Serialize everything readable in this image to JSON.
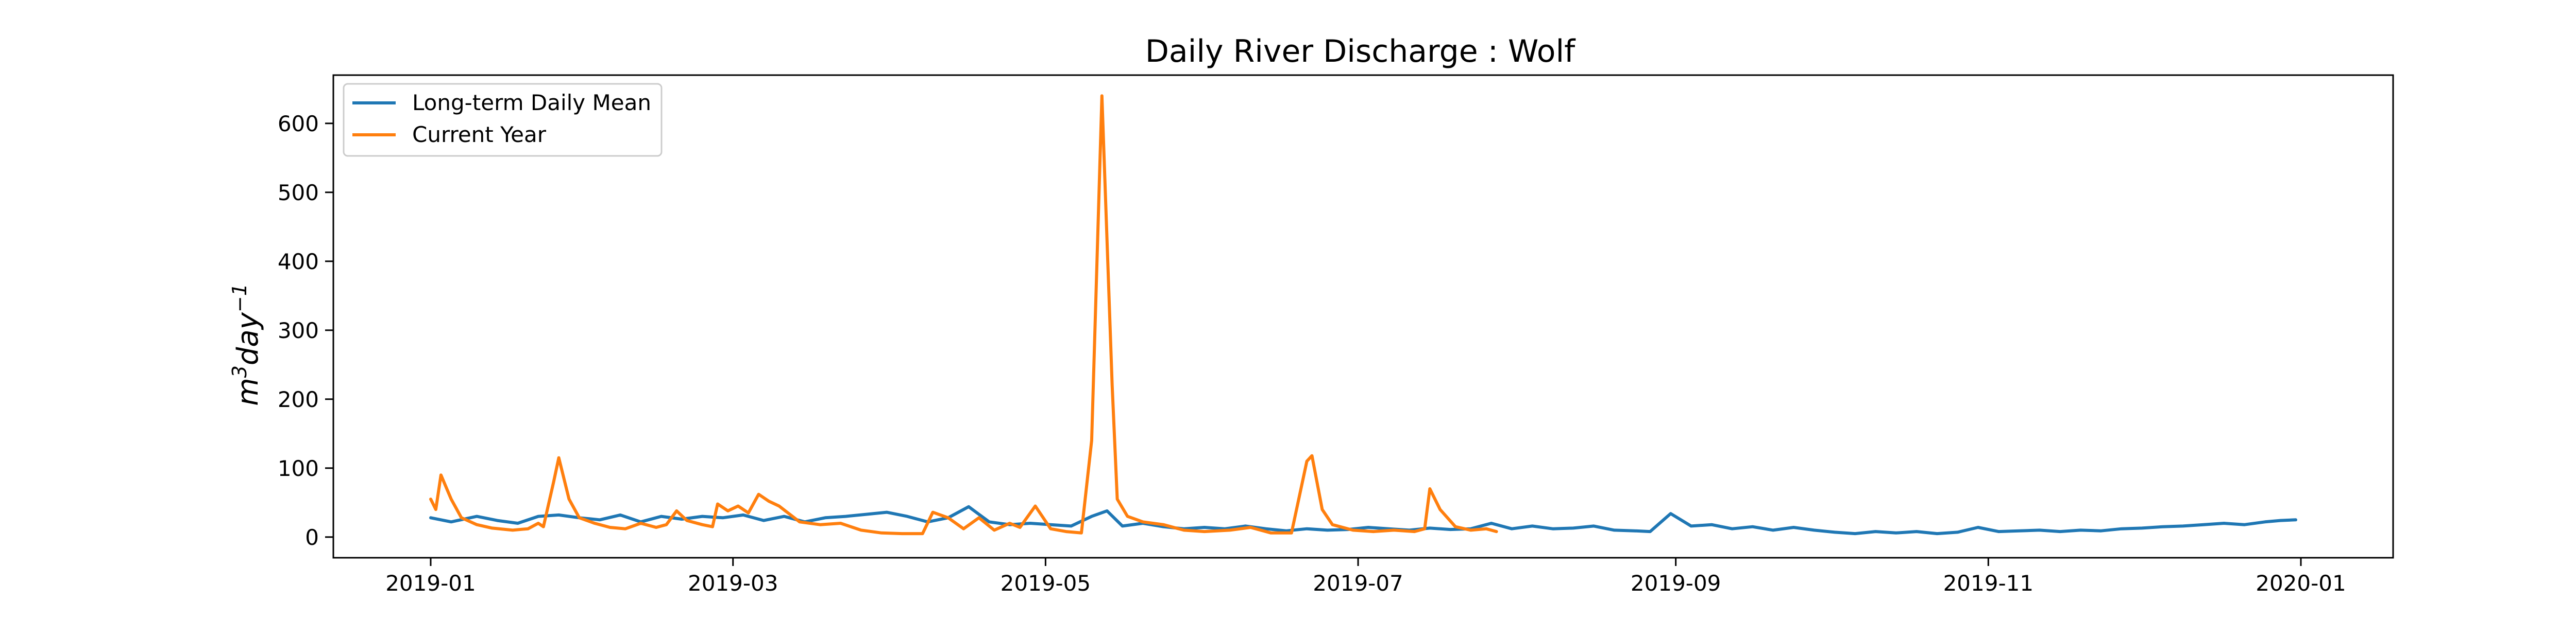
{
  "chart_data": {
    "type": "line",
    "title": "Daily River Discharge : Wolf",
    "xlabel": "",
    "ylabel": "m³day⁻¹",
    "ylabel_parts": {
      "base": "m",
      "sup1": "3",
      "mid": "day",
      "sup2": "−1"
    },
    "ylim": [
      -30,
      670
    ],
    "xlim": [
      "2018-12-13",
      "2020-01-19"
    ],
    "yticks": [
      0,
      100,
      200,
      300,
      400,
      500,
      600
    ],
    "xticks": [
      "2019-01",
      "2019-03",
      "2019-05",
      "2019-07",
      "2019-09",
      "2019-11",
      "2020-01"
    ],
    "xtick_dates": [
      "2019-01-01",
      "2019-03-01",
      "2019-05-01",
      "2019-07-01",
      "2019-09-01",
      "2019-11-01",
      "2020-01-01"
    ],
    "grid": false,
    "legend_position": "top-left",
    "series": [
      {
        "name": "Long-term Daily Mean",
        "color": "#1f77b4",
        "points": [
          [
            "2019-01-01",
            28
          ],
          [
            "2019-01-05",
            22
          ],
          [
            "2019-01-10",
            30
          ],
          [
            "2019-01-14",
            24
          ],
          [
            "2019-01-18",
            20
          ],
          [
            "2019-01-22",
            30
          ],
          [
            "2019-01-26",
            32
          ],
          [
            "2019-01-30",
            28
          ],
          [
            "2019-02-03",
            25
          ],
          [
            "2019-02-07",
            32
          ],
          [
            "2019-02-11",
            22
          ],
          [
            "2019-02-15",
            30
          ],
          [
            "2019-02-19",
            26
          ],
          [
            "2019-02-23",
            30
          ],
          [
            "2019-02-27",
            28
          ],
          [
            "2019-03-03",
            32
          ],
          [
            "2019-03-07",
            24
          ],
          [
            "2019-03-11",
            30
          ],
          [
            "2019-03-15",
            22
          ],
          [
            "2019-03-19",
            28
          ],
          [
            "2019-03-23",
            30
          ],
          [
            "2019-03-27",
            33
          ],
          [
            "2019-03-31",
            36
          ],
          [
            "2019-04-04",
            30
          ],
          [
            "2019-04-08",
            22
          ],
          [
            "2019-04-12",
            28
          ],
          [
            "2019-04-16",
            44
          ],
          [
            "2019-04-20",
            22
          ],
          [
            "2019-04-24",
            18
          ],
          [
            "2019-04-28",
            20
          ],
          [
            "2019-05-02",
            18
          ],
          [
            "2019-05-06",
            16
          ],
          [
            "2019-05-10",
            30
          ],
          [
            "2019-05-13",
            38
          ],
          [
            "2019-05-16",
            16
          ],
          [
            "2019-05-20",
            20
          ],
          [
            "2019-05-24",
            15
          ],
          [
            "2019-05-28",
            12
          ],
          [
            "2019-06-01",
            14
          ],
          [
            "2019-06-05",
            12
          ],
          [
            "2019-06-09",
            16
          ],
          [
            "2019-06-13",
            12
          ],
          [
            "2019-06-17",
            9
          ],
          [
            "2019-06-21",
            12
          ],
          [
            "2019-06-25",
            10
          ],
          [
            "2019-06-29",
            11
          ],
          [
            "2019-07-03",
            14
          ],
          [
            "2019-07-07",
            12
          ],
          [
            "2019-07-11",
            10
          ],
          [
            "2019-07-15",
            13
          ],
          [
            "2019-07-19",
            11
          ],
          [
            "2019-07-23",
            12
          ],
          [
            "2019-07-27",
            20
          ],
          [
            "2019-07-31",
            12
          ],
          [
            "2019-08-04",
            16
          ],
          [
            "2019-08-08",
            12
          ],
          [
            "2019-08-12",
            13
          ],
          [
            "2019-08-16",
            16
          ],
          [
            "2019-08-20",
            10
          ],
          [
            "2019-08-24",
            9
          ],
          [
            "2019-08-27",
            8
          ],
          [
            "2019-08-31",
            34
          ],
          [
            "2019-09-04",
            16
          ],
          [
            "2019-09-08",
            18
          ],
          [
            "2019-09-12",
            12
          ],
          [
            "2019-09-16",
            15
          ],
          [
            "2019-09-20",
            10
          ],
          [
            "2019-09-24",
            14
          ],
          [
            "2019-09-28",
            10
          ],
          [
            "2019-10-02",
            7
          ],
          [
            "2019-10-06",
            5
          ],
          [
            "2019-10-10",
            8
          ],
          [
            "2019-10-14",
            6
          ],
          [
            "2019-10-18",
            8
          ],
          [
            "2019-10-22",
            5
          ],
          [
            "2019-10-26",
            7
          ],
          [
            "2019-10-30",
            14
          ],
          [
            "2019-11-03",
            8
          ],
          [
            "2019-11-07",
            9
          ],
          [
            "2019-11-11",
            10
          ],
          [
            "2019-11-15",
            8
          ],
          [
            "2019-11-19",
            10
          ],
          [
            "2019-11-23",
            9
          ],
          [
            "2019-11-27",
            12
          ],
          [
            "2019-12-01",
            13
          ],
          [
            "2019-12-05",
            15
          ],
          [
            "2019-12-09",
            16
          ],
          [
            "2019-12-13",
            18
          ],
          [
            "2019-12-17",
            20
          ],
          [
            "2019-12-21",
            18
          ],
          [
            "2019-12-25",
            22
          ],
          [
            "2019-12-28",
            24
          ],
          [
            "2019-12-31",
            25
          ]
        ]
      },
      {
        "name": "Current Year",
        "color": "#ff7f0e",
        "points": [
          [
            "2019-01-01",
            55
          ],
          [
            "2019-01-02",
            40
          ],
          [
            "2019-01-03",
            90
          ],
          [
            "2019-01-05",
            55
          ],
          [
            "2019-01-07",
            28
          ],
          [
            "2019-01-10",
            18
          ],
          [
            "2019-01-13",
            13
          ],
          [
            "2019-01-17",
            10
          ],
          [
            "2019-01-20",
            12
          ],
          [
            "2019-01-22",
            20
          ],
          [
            "2019-01-23",
            15
          ],
          [
            "2019-01-25",
            80
          ],
          [
            "2019-01-26",
            115
          ],
          [
            "2019-01-28",
            55
          ],
          [
            "2019-01-30",
            28
          ],
          [
            "2019-02-02",
            20
          ],
          [
            "2019-02-05",
            14
          ],
          [
            "2019-02-08",
            12
          ],
          [
            "2019-02-11",
            20
          ],
          [
            "2019-02-14",
            14
          ],
          [
            "2019-02-16",
            18
          ],
          [
            "2019-02-18",
            38
          ],
          [
            "2019-02-20",
            24
          ],
          [
            "2019-02-23",
            18
          ],
          [
            "2019-02-25",
            15
          ],
          [
            "2019-02-26",
            48
          ],
          [
            "2019-02-28",
            38
          ],
          [
            "2019-03-02",
            45
          ],
          [
            "2019-03-04",
            35
          ],
          [
            "2019-03-06",
            62
          ],
          [
            "2019-03-08",
            52
          ],
          [
            "2019-03-10",
            45
          ],
          [
            "2019-03-14",
            22
          ],
          [
            "2019-03-18",
            18
          ],
          [
            "2019-03-22",
            20
          ],
          [
            "2019-03-26",
            10
          ],
          [
            "2019-03-30",
            6
          ],
          [
            "2019-04-03",
            5
          ],
          [
            "2019-04-07",
            5
          ],
          [
            "2019-04-09",
            36
          ],
          [
            "2019-04-12",
            28
          ],
          [
            "2019-04-15",
            12
          ],
          [
            "2019-04-18",
            28
          ],
          [
            "2019-04-21",
            10
          ],
          [
            "2019-04-24",
            20
          ],
          [
            "2019-04-26",
            14
          ],
          [
            "2019-04-29",
            45
          ],
          [
            "2019-05-02",
            12
          ],
          [
            "2019-05-05",
            8
          ],
          [
            "2019-05-08",
            6
          ],
          [
            "2019-05-10",
            140
          ],
          [
            "2019-05-12",
            640
          ],
          [
            "2019-05-14",
            220
          ],
          [
            "2019-05-15",
            55
          ],
          [
            "2019-05-17",
            30
          ],
          [
            "2019-05-20",
            22
          ],
          [
            "2019-05-24",
            18
          ],
          [
            "2019-05-28",
            10
          ],
          [
            "2019-06-01",
            8
          ],
          [
            "2019-06-06",
            10
          ],
          [
            "2019-06-10",
            14
          ],
          [
            "2019-06-14",
            6
          ],
          [
            "2019-06-18",
            6
          ],
          [
            "2019-06-21",
            110
          ],
          [
            "2019-06-22",
            118
          ],
          [
            "2019-06-24",
            40
          ],
          [
            "2019-06-26",
            18
          ],
          [
            "2019-06-30",
            10
          ],
          [
            "2019-07-04",
            8
          ],
          [
            "2019-07-08",
            10
          ],
          [
            "2019-07-12",
            8
          ],
          [
            "2019-07-14",
            12
          ],
          [
            "2019-07-15",
            70
          ],
          [
            "2019-07-17",
            40
          ],
          [
            "2019-07-20",
            15
          ],
          [
            "2019-07-23",
            10
          ],
          [
            "2019-07-26",
            12
          ],
          [
            "2019-07-28",
            8
          ]
        ]
      }
    ]
  }
}
